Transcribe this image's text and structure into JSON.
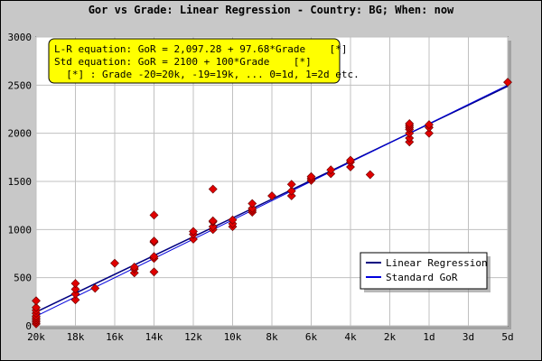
{
  "chart_data": {
    "type": "scatter",
    "title": "Gor vs Grade: Linear Regression - Country: BG; When: now",
    "xlabel": "",
    "ylabel": "",
    "x_ticks": [
      "20k",
      "18k",
      "16k",
      "14k",
      "12k",
      "10k",
      "8k",
      "6k",
      "4k",
      "2k",
      "1d",
      "3d",
      "5d"
    ],
    "x_tick_values": [
      -20,
      -18,
      -16,
      -14,
      -12,
      -10,
      -8,
      -6,
      -4,
      -2,
      0,
      2,
      4
    ],
    "y_ticks": [
      "0",
      "500",
      "1000",
      "1500",
      "2000",
      "2500",
      "3000"
    ],
    "xlim": [
      -20,
      4
    ],
    "ylim": [
      0,
      3000
    ],
    "equations": [
      "L-R equation: GoR = 2,097.28 + 97.68*Grade    [*]",
      "Std equation: GoR = 2100 + 100*Grade    [*]",
      "  [*] : Grade -20=20k, -19=19k, ... 0=1d, 1=2d etc."
    ],
    "series": [
      {
        "name": "Linear Regression",
        "intercept": 2097.28,
        "slope": 97.68,
        "color": "#000080"
      },
      {
        "name": "Standard GoR",
        "intercept": 2100,
        "slope": 100,
        "color": "#0000dd"
      }
    ],
    "points": [
      {
        "x": -20,
        "y": 20
      },
      {
        "x": -20,
        "y": 40
      },
      {
        "x": -20,
        "y": 60
      },
      {
        "x": -20,
        "y": 80
      },
      {
        "x": -20,
        "y": 100
      },
      {
        "x": -20,
        "y": 130
      },
      {
        "x": -20,
        "y": 160
      },
      {
        "x": -20,
        "y": 190
      },
      {
        "x": -20,
        "y": 260
      },
      {
        "x": -18,
        "y": 270
      },
      {
        "x": -18,
        "y": 330
      },
      {
        "x": -18,
        "y": 380
      },
      {
        "x": -18,
        "y": 440
      },
      {
        "x": -17,
        "y": 390
      },
      {
        "x": -16,
        "y": 650
      },
      {
        "x": -15,
        "y": 550
      },
      {
        "x": -15,
        "y": 590
      },
      {
        "x": -15,
        "y": 610
      },
      {
        "x": -14,
        "y": 560
      },
      {
        "x": -14,
        "y": 700
      },
      {
        "x": -14,
        "y": 720
      },
      {
        "x": -14,
        "y": 870
      },
      {
        "x": -14,
        "y": 880
      },
      {
        "x": -14,
        "y": 1150
      },
      {
        "x": -12,
        "y": 900
      },
      {
        "x": -12,
        "y": 950
      },
      {
        "x": -12,
        "y": 980
      },
      {
        "x": -11,
        "y": 1000
      },
      {
        "x": -11,
        "y": 1030
      },
      {
        "x": -11,
        "y": 1080
      },
      {
        "x": -11,
        "y": 1090
      },
      {
        "x": -11,
        "y": 1420
      },
      {
        "x": -10,
        "y": 1030
      },
      {
        "x": -10,
        "y": 1060
      },
      {
        "x": -10,
        "y": 1100
      },
      {
        "x": -9,
        "y": 1180
      },
      {
        "x": -9,
        "y": 1200
      },
      {
        "x": -9,
        "y": 1220
      },
      {
        "x": -9,
        "y": 1270
      },
      {
        "x": -8,
        "y": 1350
      },
      {
        "x": -7,
        "y": 1350
      },
      {
        "x": -7,
        "y": 1400
      },
      {
        "x": -7,
        "y": 1470
      },
      {
        "x": -6,
        "y": 1510
      },
      {
        "x": -6,
        "y": 1530
      },
      {
        "x": -6,
        "y": 1550
      },
      {
        "x": -5,
        "y": 1580
      },
      {
        "x": -5,
        "y": 1620
      },
      {
        "x": -4,
        "y": 1650
      },
      {
        "x": -4,
        "y": 1700
      },
      {
        "x": -4,
        "y": 1720
      },
      {
        "x": -3,
        "y": 1570
      },
      {
        "x": -1,
        "y": 1910
      },
      {
        "x": -1,
        "y": 1950
      },
      {
        "x": -1,
        "y": 2000
      },
      {
        "x": -1,
        "y": 2040
      },
      {
        "x": -1,
        "y": 2060
      },
      {
        "x": -1,
        "y": 2080
      },
      {
        "x": -1,
        "y": 2100
      },
      {
        "x": 0,
        "y": 2000
      },
      {
        "x": 0,
        "y": 2060
      },
      {
        "x": 0,
        "y": 2090
      },
      {
        "x": 4,
        "y": 2530
      }
    ],
    "colors": {
      "point": "#e00000",
      "plot_bg": "#ffffff",
      "frame_bg": "#c8c8c8",
      "eq_box": "#ffff00",
      "grid": "#c0c0c0"
    },
    "grid": true,
    "legend_position": "bottom-right"
  }
}
